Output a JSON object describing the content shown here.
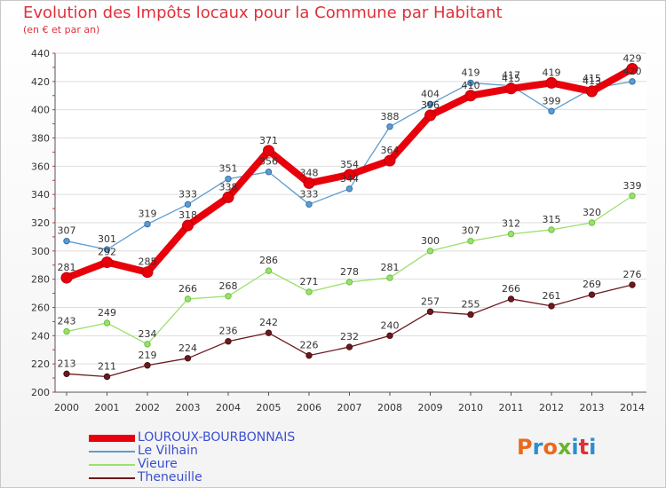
{
  "title": "Evolution des Impôts locaux pour la Commune par Habitant",
  "subtitle": "(en € et par an)",
  "logo": {
    "text": "Proxiti",
    "colors": [
      "#e96a1c",
      "#2a8fd0",
      "#e96a1c",
      "#6ab42f",
      "#2a8fd0",
      "#e0303a",
      "#2a8fd0"
    ]
  },
  "chart_data": {
    "type": "line",
    "x": [
      2000,
      2001,
      2002,
      2003,
      2004,
      2005,
      2006,
      2007,
      2008,
      2009,
      2010,
      2011,
      2012,
      2013,
      2014
    ],
    "ylim": [
      200,
      440
    ],
    "yticks": [
      200,
      220,
      240,
      260,
      280,
      300,
      320,
      340,
      360,
      380,
      400,
      420,
      440
    ],
    "grid": "horizontal",
    "legend_position": "bottom-left",
    "series": [
      {
        "name": "LOUROUX-BOURBONNAIS",
        "color": "#e8000b",
        "width": 8,
        "values": [
          281,
          292,
          285,
          318,
          338,
          371,
          348,
          354,
          364,
          396,
          410,
          415,
          419,
          413,
          429
        ]
      },
      {
        "name": "Le Vilhain",
        "color": "#5d9ccf",
        "width": 1.3,
        "values": [
          307,
          301,
          319,
          333,
          351,
          356,
          333,
          344,
          388,
          404,
          419,
          417,
          399,
          415,
          420
        ]
      },
      {
        "name": "Vieure",
        "color": "#9be06e",
        "width": 1.3,
        "values": [
          243,
          249,
          234,
          266,
          268,
          286,
          271,
          278,
          281,
          300,
          307,
          312,
          315,
          320,
          339
        ]
      },
      {
        "name": "Theneuille",
        "color": "#6b1a1f",
        "width": 1.3,
        "values": [
          213,
          211,
          219,
          224,
          236,
          242,
          226,
          232,
          240,
          257,
          255,
          266,
          261,
          269,
          276
        ]
      }
    ]
  }
}
